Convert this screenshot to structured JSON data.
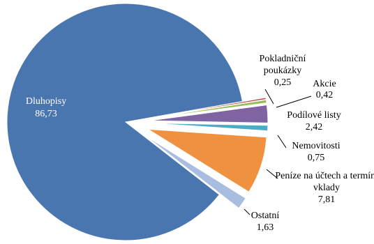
{
  "chart_data": {
    "type": "pie",
    "categories": [
      "Dluhopisy",
      "Pokladniční poukázky",
      "Akcie",
      "Podílové listy",
      "Nemovitosti",
      "Peníze na účtech a termín. vklady",
      "Ostatní"
    ],
    "values": [
      86.73,
      0.25,
      0.42,
      2.42,
      0.75,
      7.81,
      1.63
    ],
    "value_labels": [
      "86,73",
      "0,25",
      "0,42",
      "2,42",
      "0,75",
      "7,81",
      "1,63"
    ],
    "colors": [
      "#4a76b0",
      "#c0504d",
      "#9bbb59",
      "#8064a2",
      "#4bacc6",
      "#f0913f",
      "#a8bde0"
    ]
  }
}
